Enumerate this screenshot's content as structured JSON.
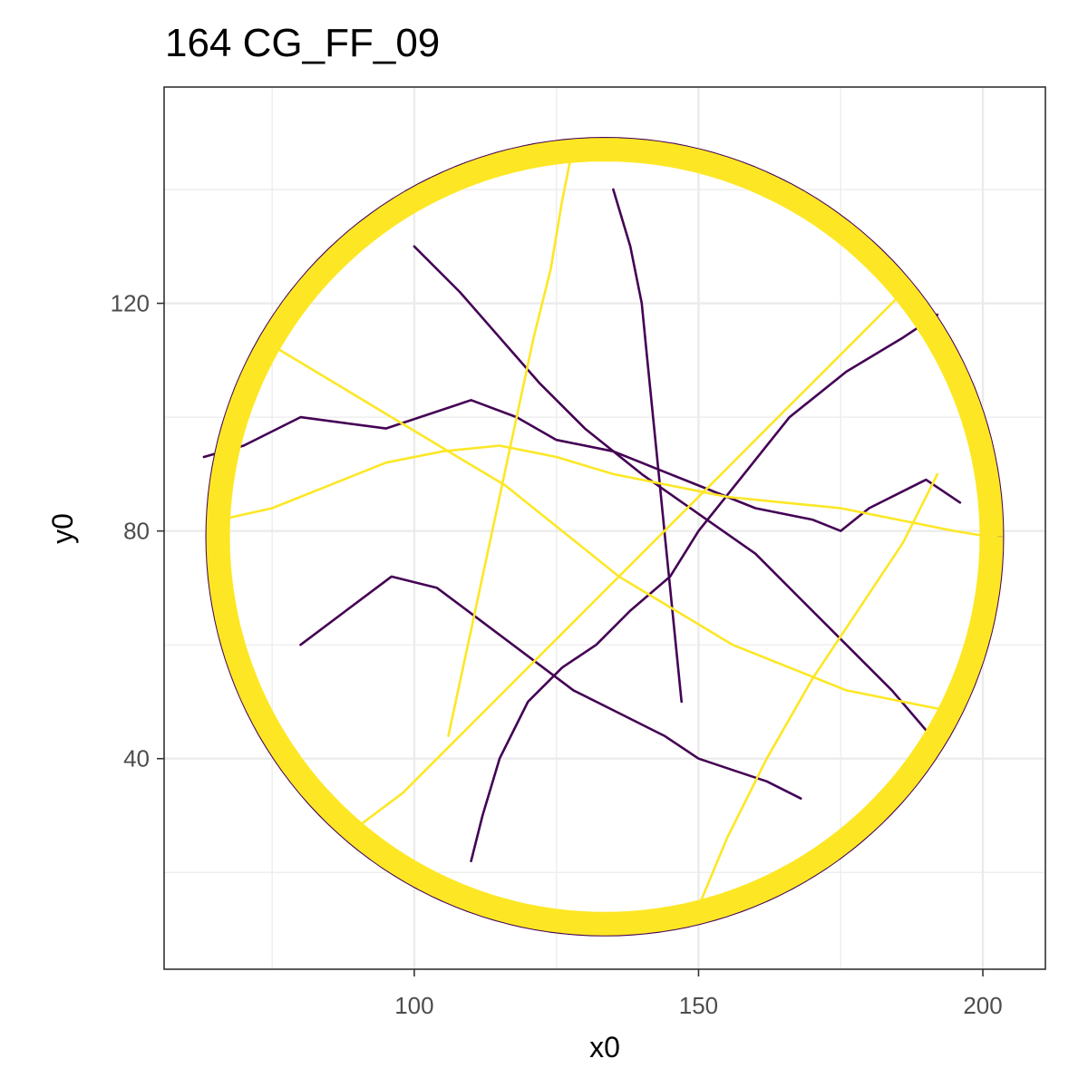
{
  "chart_data": {
    "type": "line",
    "title": "164 CG_FF_09",
    "xlabel": "x0",
    "ylabel": "y0",
    "xlim": [
      56,
      211
    ],
    "ylim": [
      3,
      158
    ],
    "x_ticks": [
      100,
      150,
      200
    ],
    "y_ticks": [
      40,
      80,
      120
    ],
    "x_minor_ticks": [
      75,
      125,
      175
    ],
    "y_minor_ticks": [
      20,
      60,
      100,
      140
    ],
    "grid": true,
    "legend": "none",
    "arena": {
      "center_x": 133.5,
      "center_y": 79.0,
      "radius": 69.0
    },
    "colors": {
      "series_a": "#440154",
      "series_b": "#FDE725",
      "grid": "#ebebeb",
      "panel_border": "#333333"
    },
    "series": [
      {
        "color": "#440154",
        "x": [
          63,
          70,
          80,
          95,
          110,
          118,
          125,
          135,
          145,
          160,
          170,
          175,
          180,
          190,
          196
        ],
        "y": [
          93,
          95,
          100,
          98,
          103,
          100,
          96,
          94,
          90,
          84,
          82,
          80,
          84,
          89,
          85
        ]
      },
      {
        "color": "#440154",
        "x": [
          100,
          108,
          115,
          122,
          130,
          140,
          150,
          160,
          168,
          176,
          184,
          190
        ],
        "y": [
          130,
          122,
          114,
          106,
          98,
          90,
          83,
          76,
          68,
          60,
          52,
          45
        ]
      },
      {
        "color": "#440154",
        "x": [
          80,
          88,
          96,
          104,
          112,
          120,
          128,
          136,
          144,
          150,
          156,
          162,
          168
        ],
        "y": [
          60,
          66,
          72,
          70,
          64,
          58,
          52,
          48,
          44,
          40,
          38,
          36,
          33
        ]
      },
      {
        "color": "#440154",
        "x": [
          110,
          112,
          115,
          120,
          126,
          132,
          138,
          145,
          150,
          158,
          166,
          176,
          186,
          192
        ],
        "y": [
          22,
          30,
          40,
          50,
          56,
          60,
          66,
          72,
          80,
          90,
          100,
          108,
          114,
          118
        ]
      },
      {
        "color": "#440154",
        "x": [
          135,
          138,
          140,
          141,
          142,
          143,
          144,
          145,
          146,
          147
        ],
        "y": [
          140,
          130,
          120,
          110,
          100,
          90,
          80,
          70,
          60,
          50
        ]
      },
      {
        "color": "#FDE725",
        "x": [
          66,
          75,
          85,
          95,
          105,
          115,
          125,
          135,
          145,
          155,
          165,
          175,
          185,
          195,
          201
        ],
        "y": [
          82,
          84,
          88,
          92,
          94,
          95,
          93,
          90,
          88,
          86,
          85,
          84,
          82,
          80,
          79
        ]
      },
      {
        "color": "#FDE725",
        "x": [
          90,
          98,
          106,
          114,
          122,
          130,
          138,
          146,
          154,
          162,
          170,
          178,
          186
        ],
        "y": [
          28,
          34,
          42,
          50,
          58,
          66,
          74,
          82,
          90,
          98,
          106,
          114,
          122
        ]
      },
      {
        "color": "#FDE725",
        "x": [
          128,
          126,
          124,
          121,
          118,
          115,
          112,
          109,
          106
        ],
        "y": [
          148,
          138,
          126,
          114,
          100,
          86,
          72,
          58,
          44
        ]
      },
      {
        "color": "#FDE725",
        "x": [
          76,
          86,
          96,
          106,
          116,
          126,
          136,
          146,
          156,
          166,
          176,
          186,
          196
        ],
        "y": [
          112,
          106,
          100,
          94,
          88,
          80,
          72,
          66,
          60,
          56,
          52,
          50,
          48
        ]
      },
      {
        "color": "#FDE725",
        "x": [
          150,
          155,
          162,
          170,
          178,
          186,
          192
        ],
        "y": [
          14,
          26,
          40,
          54,
          66,
          78,
          90
        ]
      }
    ]
  }
}
